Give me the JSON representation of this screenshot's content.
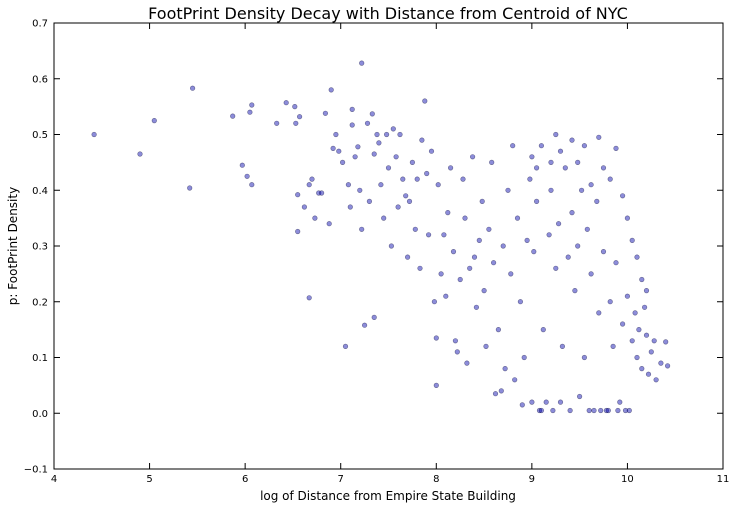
{
  "chart_data": {
    "type": "scatter",
    "title": "FootPrint Density Decay with Distance from Centroid of NYC",
    "xlabel": "log of Distance from Empire State Building",
    "ylabel": "p: FootPrint Density",
    "xlim": [
      4,
      11
    ],
    "ylim": [
      -0.1,
      0.7
    ],
    "xticks": [
      "4",
      "5",
      "6",
      "7",
      "8",
      "9",
      "10",
      "11"
    ],
    "yticks": [
      "−0.1",
      "0.0",
      "0.1",
      "0.2",
      "0.3",
      "0.4",
      "0.5",
      "0.6",
      "0.7"
    ],
    "grid": false,
    "legend": "none",
    "marker_color": "#0000aa",
    "marker_alpha": 0.45,
    "points": [
      [
        4.42,
        0.5
      ],
      [
        4.9,
        0.465
      ],
      [
        5.05,
        0.525
      ],
      [
        5.42,
        0.404
      ],
      [
        5.45,
        0.583
      ],
      [
        5.87,
        0.533
      ],
      [
        5.97,
        0.445
      ],
      [
        6.02,
        0.425
      ],
      [
        6.05,
        0.54
      ],
      [
        6.07,
        0.41
      ],
      [
        6.07,
        0.553
      ],
      [
        6.33,
        0.52
      ],
      [
        6.43,
        0.557
      ],
      [
        6.52,
        0.55
      ],
      [
        6.53,
        0.52
      ],
      [
        6.57,
        0.532
      ],
      [
        6.55,
        0.392
      ],
      [
        6.55,
        0.326
      ],
      [
        6.62,
        0.37
      ],
      [
        6.67,
        0.41
      ],
      [
        6.67,
        0.207
      ],
      [
        6.7,
        0.42
      ],
      [
        6.73,
        0.35
      ],
      [
        6.77,
        0.395
      ],
      [
        6.8,
        0.395
      ],
      [
        6.84,
        0.538
      ],
      [
        6.88,
        0.34
      ],
      [
        6.9,
        0.58
      ],
      [
        6.92,
        0.475
      ],
      [
        6.95,
        0.5
      ],
      [
        6.98,
        0.47
      ],
      [
        7.02,
        0.45
      ],
      [
        7.05,
        0.12
      ],
      [
        7.08,
        0.41
      ],
      [
        7.1,
        0.37
      ],
      [
        7.12,
        0.517
      ],
      [
        7.12,
        0.545
      ],
      [
        7.15,
        0.46
      ],
      [
        7.18,
        0.478
      ],
      [
        7.2,
        0.4
      ],
      [
        7.22,
        0.628
      ],
      [
        7.22,
        0.33
      ],
      [
        7.25,
        0.158
      ],
      [
        7.28,
        0.52
      ],
      [
        7.3,
        0.38
      ],
      [
        7.33,
        0.537
      ],
      [
        7.35,
        0.172
      ],
      [
        7.35,
        0.465
      ],
      [
        7.38,
        0.5
      ],
      [
        7.4,
        0.485
      ],
      [
        7.42,
        0.41
      ],
      [
        7.45,
        0.35
      ],
      [
        7.48,
        0.5
      ],
      [
        7.5,
        0.44
      ],
      [
        7.53,
        0.3
      ],
      [
        7.55,
        0.51
      ],
      [
        7.58,
        0.46
      ],
      [
        7.6,
        0.37
      ],
      [
        7.62,
        0.5
      ],
      [
        7.65,
        0.42
      ],
      [
        7.68,
        0.39
      ],
      [
        7.7,
        0.28
      ],
      [
        7.72,
        0.38
      ],
      [
        7.75,
        0.45
      ],
      [
        7.78,
        0.33
      ],
      [
        7.8,
        0.42
      ],
      [
        7.83,
        0.26
      ],
      [
        7.85,
        0.49
      ],
      [
        7.88,
        0.56
      ],
      [
        7.9,
        0.43
      ],
      [
        7.92,
        0.32
      ],
      [
        7.95,
        0.47
      ],
      [
        7.98,
        0.2
      ],
      [
        8.0,
        0.05
      ],
      [
        8.0,
        0.135
      ],
      [
        8.02,
        0.41
      ],
      [
        8.05,
        0.25
      ],
      [
        8.08,
        0.32
      ],
      [
        8.1,
        0.21
      ],
      [
        8.12,
        0.36
      ],
      [
        8.15,
        0.44
      ],
      [
        8.18,
        0.29
      ],
      [
        8.2,
        0.13
      ],
      [
        8.22,
        0.11
      ],
      [
        8.25,
        0.24
      ],
      [
        8.28,
        0.42
      ],
      [
        8.3,
        0.35
      ],
      [
        8.32,
        0.09
      ],
      [
        8.35,
        0.26
      ],
      [
        8.38,
        0.46
      ],
      [
        8.4,
        0.28
      ],
      [
        8.42,
        0.19
      ],
      [
        8.45,
        0.31
      ],
      [
        8.48,
        0.38
      ],
      [
        8.5,
        0.22
      ],
      [
        8.52,
        0.12
      ],
      [
        8.55,
        0.33
      ],
      [
        8.58,
        0.45
      ],
      [
        8.6,
        0.27
      ],
      [
        8.62,
        0.035
      ],
      [
        8.65,
        0.15
      ],
      [
        8.68,
        0.04
      ],
      [
        8.7,
        0.3
      ],
      [
        8.72,
        0.08
      ],
      [
        8.75,
        0.4
      ],
      [
        8.78,
        0.25
      ],
      [
        8.8,
        0.48
      ],
      [
        8.82,
        0.06
      ],
      [
        8.85,
        0.35
      ],
      [
        8.88,
        0.2
      ],
      [
        8.9,
        0.015
      ],
      [
        8.92,
        0.1
      ],
      [
        8.95,
        0.31
      ],
      [
        8.98,
        0.42
      ],
      [
        9.0,
        0.02
      ],
      [
        9.02,
        0.29
      ],
      [
        9.05,
        0.38
      ],
      [
        9.08,
        0.005
      ],
      [
        9.1,
        0.005
      ],
      [
        9.12,
        0.15
      ],
      [
        9.15,
        0.02
      ],
      [
        9.18,
        0.32
      ],
      [
        9.2,
        0.4
      ],
      [
        9.22,
        0.005
      ],
      [
        9.25,
        0.26
      ],
      [
        9.28,
        0.34
      ],
      [
        9.3,
        0.02
      ],
      [
        9.32,
        0.12
      ],
      [
        9.35,
        0.44
      ],
      [
        9.38,
        0.28
      ],
      [
        9.4,
        0.005
      ],
      [
        9.42,
        0.36
      ],
      [
        9.45,
        0.22
      ],
      [
        9.48,
        0.3
      ],
      [
        9.5,
        0.03
      ],
      [
        9.52,
        0.4
      ],
      [
        9.55,
        0.1
      ],
      [
        9.58,
        0.33
      ],
      [
        9.6,
        0.005
      ],
      [
        9.62,
        0.25
      ],
      [
        9.65,
        0.005
      ],
      [
        9.68,
        0.38
      ],
      [
        9.7,
        0.18
      ],
      [
        9.72,
        0.005
      ],
      [
        9.75,
        0.29
      ],
      [
        9.78,
        0.005
      ],
      [
        9.8,
        0.005
      ],
      [
        9.82,
        0.2
      ],
      [
        9.85,
        0.12
      ],
      [
        9.88,
        0.27
      ],
      [
        9.9,
        0.005
      ],
      [
        9.92,
        0.02
      ],
      [
        9.95,
        0.16
      ],
      [
        9.98,
        0.005
      ],
      [
        10.0,
        0.21
      ],
      [
        10.02,
        0.005
      ],
      [
        10.05,
        0.13
      ],
      [
        10.08,
        0.18
      ],
      [
        10.1,
        0.1
      ],
      [
        10.12,
        0.15
      ],
      [
        10.15,
        0.08
      ],
      [
        10.18,
        0.19
      ],
      [
        10.2,
        0.14
      ],
      [
        10.22,
        0.07
      ],
      [
        10.25,
        0.11
      ],
      [
        10.28,
        0.13
      ],
      [
        10.3,
        0.06
      ],
      [
        10.35,
        0.09
      ],
      [
        10.4,
        0.128
      ],
      [
        10.42,
        0.085
      ],
      [
        9.42,
        0.49
      ],
      [
        9.48,
        0.45
      ],
      [
        9.55,
        0.48
      ],
      [
        9.62,
        0.41
      ],
      [
        9.7,
        0.495
      ],
      [
        9.75,
        0.44
      ],
      [
        9.82,
        0.42
      ],
      [
        9.88,
        0.475
      ],
      [
        9.95,
        0.39
      ],
      [
        10.0,
        0.35
      ],
      [
        10.05,
        0.31
      ],
      [
        10.1,
        0.28
      ],
      [
        10.15,
        0.24
      ],
      [
        10.2,
        0.22
      ],
      [
        9.3,
        0.47
      ],
      [
        9.25,
        0.5
      ],
      [
        9.2,
        0.45
      ],
      [
        9.1,
        0.48
      ],
      [
        9.05,
        0.44
      ],
      [
        9.0,
        0.46
      ]
    ]
  }
}
